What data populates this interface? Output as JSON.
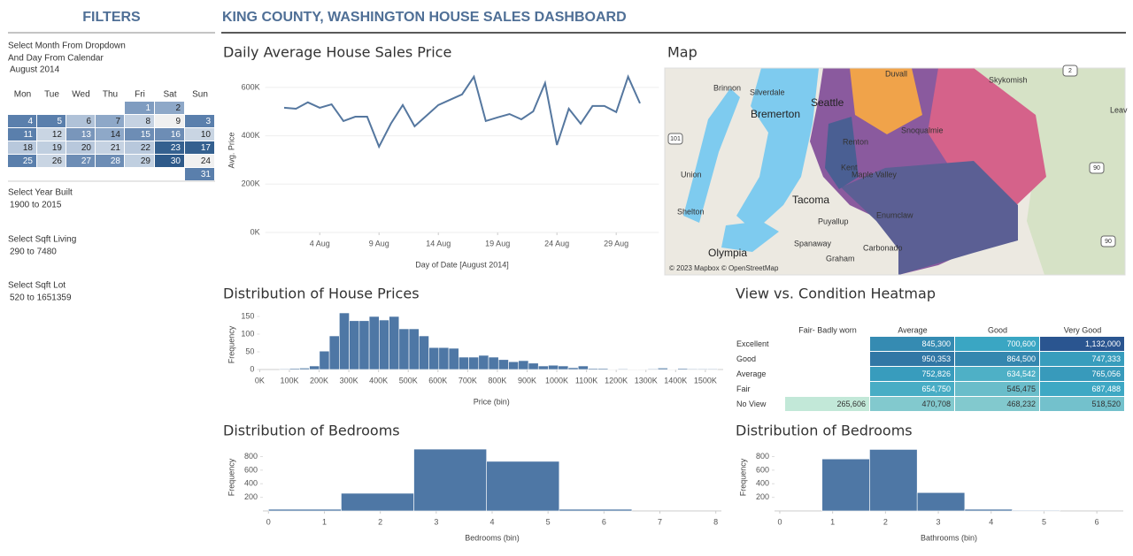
{
  "header": {
    "filters_title": "FILTERS",
    "title": "KING COUNTY, WASHINGTON HOUSE SALES DASHBOARD"
  },
  "filters": {
    "month": {
      "label": [
        "Select Month From Dropdown",
        "And Day From Calendar"
      ],
      "value": "August 2014"
    },
    "calendar": {
      "weekdays": [
        "Mon",
        "Tue",
        "Wed",
        "Thu",
        "Fri",
        "Sat",
        "Sun"
      ],
      "rows": [
        [
          null,
          null,
          null,
          null,
          1,
          2,
          null
        ],
        [
          4,
          5,
          6,
          7,
          8,
          9,
          3
        ],
        [
          11,
          12,
          13,
          14,
          15,
          16,
          10
        ],
        [
          18,
          19,
          20,
          21,
          22,
          23,
          17
        ],
        [
          25,
          26,
          27,
          28,
          29,
          30,
          24
        ],
        [
          null,
          null,
          null,
          null,
          null,
          null,
          31
        ]
      ],
      "colors": [
        [
          null,
          null,
          null,
          null,
          "#7f9cc0",
          "#8ea8c8",
          null
        ],
        [
          "#5a7fac",
          "#5a7fac",
          "#b0c2d8",
          "#8ea8c8",
          "#c5d2e2",
          "#f0f0f0",
          "#5a7fac"
        ],
        [
          "#5a7fac",
          "#c9d5e3",
          "#7996bb",
          "#8ea8c8",
          "#6d8db5",
          "#6d8db5",
          "#c9d5e3"
        ],
        [
          "#b8c8dc",
          "#c0cfe0",
          "#b8c8dc",
          "#c5d2e2",
          "#b8c8dc",
          "#34608f",
          "#34608f"
        ],
        [
          "#5a7fac",
          "#c9d5e3",
          "#6d8db5",
          "#6d8db5",
          "#c0cfe0",
          "#2e5a8a",
          "#f0f0f0"
        ],
        [
          null,
          null,
          null,
          null,
          null,
          null,
          "#5a7fac"
        ]
      ]
    },
    "year_built": {
      "label": "Select Year Built",
      "value": "1900 to 2015"
    },
    "sqft_living": {
      "label": "Select Sqft Living",
      "value": "290 to 7480"
    },
    "sqft_lot": {
      "label": "Select Sqft Lot",
      "value": "520 to 1651359"
    }
  },
  "map": {
    "title": "Map",
    "labels": [
      "Brinnon",
      "Silverdale",
      "Bremerton",
      "Seattle",
      "Duvall",
      "Skykomish",
      "Leav",
      "Renton",
      "Snoqualmie",
      "Union",
      "Kent",
      "Maple Valley",
      "Shelton",
      "Tacoma",
      "Enumclaw",
      "Puyallup",
      "Spanaway",
      "Carbonado",
      "Graham",
      "Olympia",
      "101",
      "2",
      "90",
      "90"
    ],
    "attribution": "© 2023 Mapbox © OpenStreetMap"
  },
  "chart_data": [
    {
      "type": "line",
      "title": "Daily Average House Sales Price",
      "x_label": "Day of Date [August 2014]",
      "y_label": "Avg. Price",
      "color": "#55779f",
      "grid": true,
      "x": [
        1,
        2,
        3,
        4,
        5,
        6,
        7,
        8,
        9,
        10,
        11,
        12,
        13,
        14,
        15,
        16,
        17,
        18,
        19,
        20,
        21,
        22,
        23,
        24,
        25,
        26,
        27,
        28,
        29,
        30,
        31
      ],
      "values": [
        516000,
        512000,
        538000,
        516000,
        530000,
        461000,
        479000,
        479000,
        355000,
        450000,
        527000,
        439000,
        483000,
        527000,
        549000,
        571000,
        644000,
        461000,
        476000,
        490000,
        468000,
        501000,
        618000,
        362000,
        512000,
        450000,
        523000,
        523000,
        498000,
        644000,
        534000
      ],
      "xlim": [
        -0.6,
        32.6
      ],
      "xticks": [
        {
          "value": 4,
          "label": "4 Aug"
        },
        {
          "value": 9,
          "label": "9 Aug"
        },
        {
          "value": 14,
          "label": "14 Aug"
        },
        {
          "value": 19,
          "label": "19 Aug"
        },
        {
          "value": 24,
          "label": "24 Aug"
        },
        {
          "value": 29,
          "label": "29 Aug"
        }
      ],
      "ylim": [
        0,
        680000
      ],
      "yticks": [
        {
          "value": 0,
          "label": "0K"
        },
        {
          "value": 200000,
          "label": "200K"
        },
        {
          "value": 400000,
          "label": "400K"
        },
        {
          "value": 600000,
          "label": "600K"
        }
      ]
    },
    {
      "type": "histogram",
      "title": "Distribution of House Prices",
      "x_label": "Price (bin)",
      "y_label": "Frequency",
      "color": "#4e77a5",
      "bins": [
        67000,
        100500,
        134000,
        167500,
        201000,
        234500,
        268000,
        301500,
        335000,
        368500,
        402000,
        435500,
        469000,
        502500,
        536000,
        569500,
        603000,
        636500,
        670000,
        703500,
        737000,
        770500,
        804000,
        837500,
        871000,
        904500,
        938000,
        971500,
        1005000,
        1038500,
        1072000,
        1105500,
        1139000,
        1172500,
        1206000,
        1239500,
        1273000,
        1306500,
        1340000,
        1373500,
        1407000,
        1440500,
        1474000,
        1507500,
        1541000
      ],
      "values": [
        2,
        3,
        4,
        10,
        52,
        95,
        160,
        138,
        138,
        150,
        140,
        150,
        115,
        115,
        95,
        62,
        62,
        60,
        35,
        35,
        40,
        35,
        28,
        22,
        25,
        18,
        10,
        12,
        10,
        5,
        10,
        3,
        3,
        1,
        2,
        1,
        1,
        2,
        4,
        1,
        3,
        2,
        2,
        2
      ],
      "xlim": [
        0,
        1560000
      ],
      "xticks": [
        {
          "value": 0,
          "label": "0K"
        },
        {
          "value": 100000,
          "label": "100K"
        },
        {
          "value": 200000,
          "label": "200K"
        },
        {
          "value": 300000,
          "label": "300K"
        },
        {
          "value": 400000,
          "label": "400K"
        },
        {
          "value": 500000,
          "label": "500K"
        },
        {
          "value": 600000,
          "label": "600K"
        },
        {
          "value": 700000,
          "label": "700K"
        },
        {
          "value": 800000,
          "label": "800K"
        },
        {
          "value": 900000,
          "label": "900K"
        },
        {
          "value": 1000000,
          "label": "1000K"
        },
        {
          "value": 1100000,
          "label": "1100K"
        },
        {
          "value": 1200000,
          "label": "1200K"
        },
        {
          "value": 1300000,
          "label": "1300K"
        },
        {
          "value": 1400000,
          "label": "1400K"
        },
        {
          "value": 1500000,
          "label": "1500K"
        }
      ],
      "ylim": [
        0,
        170
      ],
      "yticks": [
        0,
        50,
        100,
        150
      ]
    },
    {
      "type": "heatmap",
      "title": "View vs. Condition Heatmap",
      "x": [
        "Fair- Badly worn",
        "Average",
        "Good",
        "Very Good"
      ],
      "y": [
        "Excellent",
        "Good",
        "Average",
        "Fair",
        "No View"
      ],
      "values": [
        [
          null,
          845300,
          700600,
          1132000
        ],
        [
          null,
          950353,
          864500,
          747333
        ],
        [
          null,
          752826,
          634542,
          765056
        ],
        [
          null,
          654750,
          545475,
          687488
        ],
        [
          265606,
          470708,
          468232,
          518520
        ]
      ],
      "value_labels": [
        [
          null,
          "845,300",
          "700,600",
          "1,132,000"
        ],
        [
          null,
          "950,353",
          "864,500",
          "747,333"
        ],
        [
          null,
          "752,826",
          "634,542",
          "765,056"
        ],
        [
          null,
          "654,750",
          "545,475",
          "687,488"
        ],
        [
          "265,606",
          "470,708",
          "468,232",
          "518,520"
        ]
      ],
      "colors": [
        "#c2e8d8",
        "#3aa6c3",
        "#2a5590"
      ]
    },
    {
      "type": "histogram",
      "title": "Distribution of Bedrooms",
      "x_label": "Bedrooms (bin)",
      "y_label": "Frequency",
      "color": "#4e77a5",
      "bins": [
        0,
        1.3,
        2.6,
        3.9,
        5.2,
        6.5
      ],
      "values": [
        25,
        260,
        910,
        730,
        25
      ],
      "xlim": [
        -0.1,
        8.1
      ],
      "xticks": [
        0,
        1,
        2,
        3,
        4,
        5,
        6,
        7,
        8
      ],
      "ylim": [
        0,
        950
      ],
      "yticks": [
        200,
        400,
        600,
        800
      ]
    },
    {
      "type": "histogram",
      "title": "Distribution of Bedrooms",
      "x_label": "Bathrooms (bin)",
      "y_label": "Frequency",
      "color": "#4e77a5",
      "bins": [
        0.8,
        1.7,
        2.6,
        3.5,
        4.4,
        5.3
      ],
      "values": [
        765,
        905,
        270,
        25,
        10
      ],
      "xlim": [
        -0.1,
        6.5
      ],
      "xticks": [
        0,
        1,
        2,
        3,
        4,
        5,
        6
      ],
      "ylim": [
        0,
        950
      ],
      "yticks": [
        200,
        400,
        600,
        800
      ]
    }
  ]
}
